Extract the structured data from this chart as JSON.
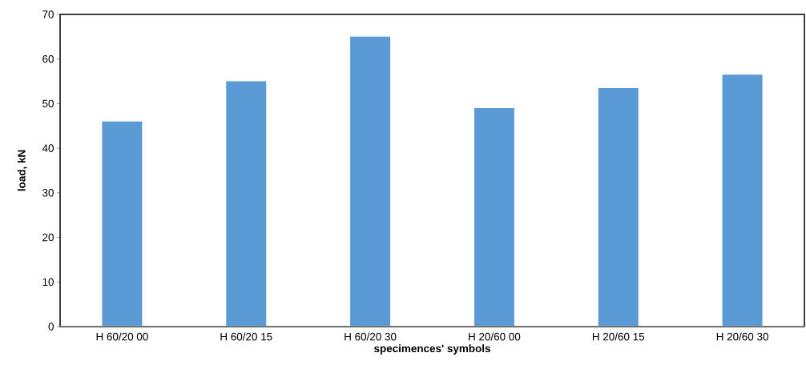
{
  "chart_data": {
    "type": "bar",
    "xlabel": "specimences' symbols",
    "ylabel": "load, kN",
    "categories": [
      "H 60/20 00",
      "H 60/20 15",
      "H 60/20 30",
      "H 20/60 00",
      "H 20/60 15",
      "H 20/60 30"
    ],
    "values": [
      46,
      55,
      65,
      49,
      53.5,
      56.5
    ],
    "color": "#5b9bd5",
    "ylim": [
      0,
      70
    ],
    "yticks": [
      0,
      10,
      20,
      30,
      40,
      50,
      60,
      70
    ],
    "grid": false
  }
}
